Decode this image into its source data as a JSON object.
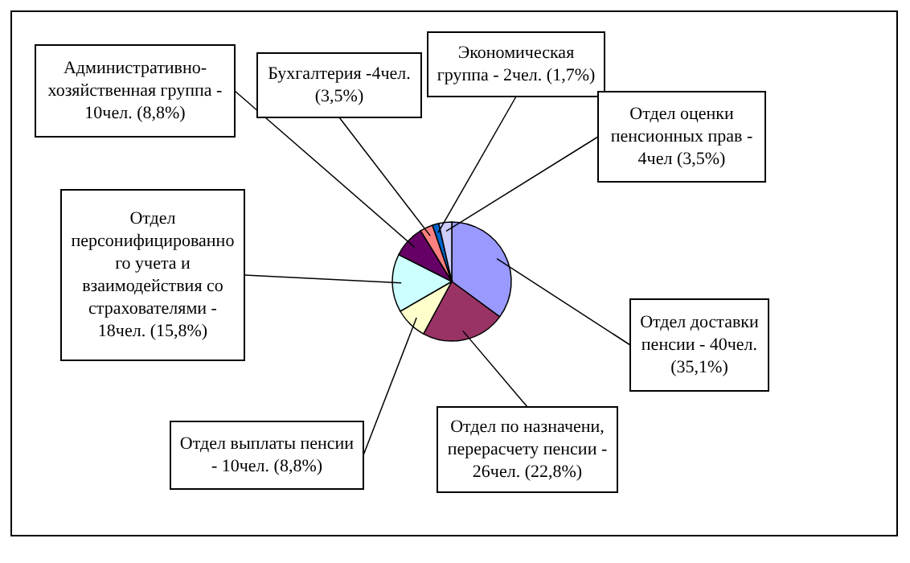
{
  "chart_data": {
    "type": "pie",
    "categories": [
      "Отдел доставки\nпенсии - 40чел.\n(35,1%)",
      "Отдел по назначени,\nперерасчету пенсии -\n26чел. (22,8%)",
      "Отдел выплаты пенсии\n- 10чел. (8,8%)",
      "Отдел\nперсонифицированно\nго учета и\nвзаимодействия со\nстрахователями -\n18чел. (15,8%)",
      "Административно-\nхозяйственная группа -\n10чел. (8,8%)",
      "Бухгалтерия -4чел.\n(3,5%)",
      "Экономическая\nгруппа - 2чел. (1,7%)",
      "Отдел оценки\nпенсионных прав -\n4чел (3,5%)"
    ],
    "values": [
      40,
      26,
      10,
      18,
      10,
      4,
      2,
      4
    ],
    "colors": [
      "#9999ff",
      "#993366",
      "#ffffcc",
      "#ccffff",
      "#660066",
      "#ff8080",
      "#0066cc",
      "#ccccff"
    ]
  }
}
